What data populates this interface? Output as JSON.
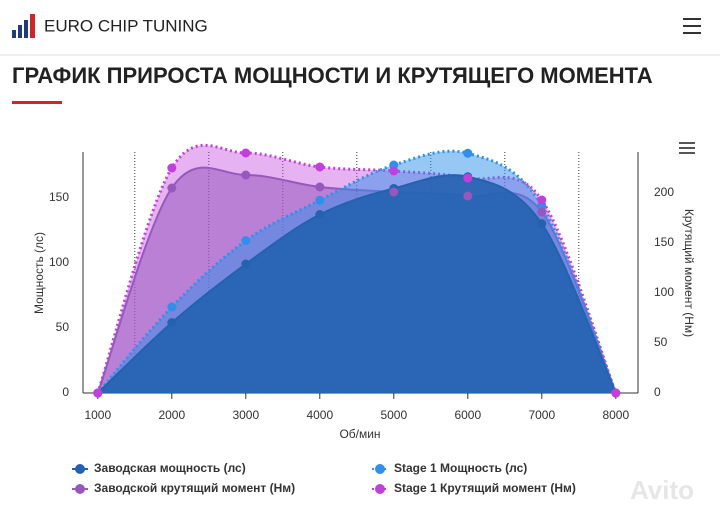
{
  "header": {
    "logo": "EURO CHIP TUNING",
    "title": "ГРАФИК ПРИРОСТА МОЩНОСТИ И КРУТЯЩЕГО МОМЕНТА"
  },
  "watermark": "Avito",
  "chart_data": {
    "type": "area-spline",
    "x_label": "Об/мин",
    "y_label": "Мощность (лс)",
    "y2_label": "Крутящий момент (Нм)",
    "x": [
      1000,
      2000,
      3000,
      4000,
      5000,
      6000,
      7000,
      8000
    ],
    "xlim": [
      800,
      8300
    ],
    "xticks": [
      1000,
      2000,
      3000,
      4000,
      5000,
      6000,
      7000,
      8000
    ],
    "xgrid": [
      1500,
      2500,
      3500,
      4500,
      5500,
      6500,
      7500
    ],
    "ylim": [
      0,
      185
    ],
    "yticks": [
      0,
      50,
      100,
      150
    ],
    "y2lim": [
      0,
      241
    ],
    "y2ticks": [
      0,
      50,
      100,
      150,
      200
    ],
    "series": [
      {
        "name": "Заводская мощность (лс)",
        "color": "#2462b0",
        "line": "solid",
        "values": [
          0,
          54,
          99,
          137,
          157,
          166,
          130,
          0
        ]
      },
      {
        "name": "Stage 1 Мощность (лс)",
        "color": "#2f8fea",
        "line": "dotted",
        "values": [
          0,
          66,
          117,
          148,
          175,
          184,
          144,
          0
        ]
      },
      {
        "name": "Заводской крутящий момент (Нм)",
        "color": "#9658bd",
        "line": "solid",
        "axis": "y2",
        "values": [
          0,
          205,
          218,
          206,
          201,
          197,
          181,
          0
        ]
      },
      {
        "name": "Stage 1 Крутящий момент (Нм)",
        "color": "#c23fdc",
        "line": "dotted",
        "axis": "y2",
        "values": [
          0,
          225,
          240,
          226,
          222,
          215,
          193,
          0
        ]
      }
    ]
  }
}
